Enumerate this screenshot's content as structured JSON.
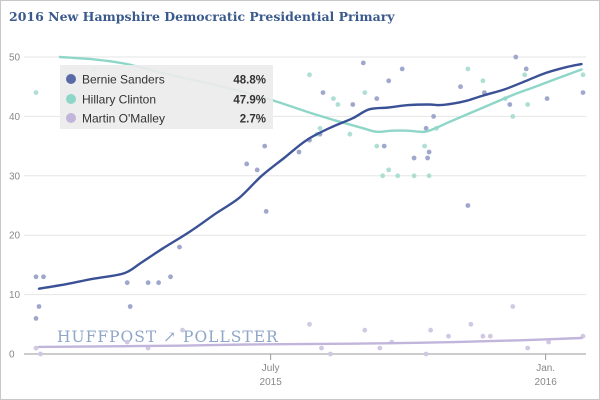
{
  "chart_data": {
    "type": "line",
    "title": "2016 New Hampshire Democratic Presidential Primary",
    "xlabel": "",
    "ylabel": "",
    "x_range": [
      "2015-01-25",
      "2016-01-28"
    ],
    "ylim": [
      0,
      50
    ],
    "y_ticks": [
      0,
      10,
      20,
      30,
      40,
      50
    ],
    "x_ticks": [
      {
        "date": "2015-07-01",
        "label_line1": "July",
        "label_line2": "2015"
      },
      {
        "date": "2016-01-01",
        "label_line1": "Jan.",
        "label_line2": "2016"
      }
    ],
    "grid": true,
    "legend_position": "top-left",
    "watermark": "HUFFPOST ↗ POLLSTER",
    "series": [
      {
        "name": "Bernie Sanders",
        "color": "#3b5196",
        "point_color": "#9aa3c9",
        "latest_value": "48.8%",
        "trend": [
          {
            "date": "2015-01-27",
            "value": 11.0
          },
          {
            "date": "2015-02-15",
            "value": 11.8
          },
          {
            "date": "2015-03-05",
            "value": 12.7
          },
          {
            "date": "2015-03-25",
            "value": 13.6
          },
          {
            "date": "2015-04-05",
            "value": 15.3
          },
          {
            "date": "2015-04-20",
            "value": 17.8
          },
          {
            "date": "2015-05-08",
            "value": 20.6
          },
          {
            "date": "2015-05-25",
            "value": 23.6
          },
          {
            "date": "2015-06-10",
            "value": 26.3
          },
          {
            "date": "2015-06-25",
            "value": 30.0
          },
          {
            "date": "2015-07-10",
            "value": 33.0
          },
          {
            "date": "2015-07-25",
            "value": 36.0
          },
          {
            "date": "2015-08-10",
            "value": 38.1
          },
          {
            "date": "2015-08-25",
            "value": 39.7
          },
          {
            "date": "2015-09-05",
            "value": 41.2
          },
          {
            "date": "2015-09-18",
            "value": 41.5
          },
          {
            "date": "2015-10-01",
            "value": 41.9
          },
          {
            "date": "2015-10-15",
            "value": 42.0
          },
          {
            "date": "2015-10-22",
            "value": 41.9
          },
          {
            "date": "2015-11-01",
            "value": 42.2
          },
          {
            "date": "2015-11-10",
            "value": 42.7
          },
          {
            "date": "2015-11-20",
            "value": 43.5
          },
          {
            "date": "2015-12-05",
            "value": 44.6
          },
          {
            "date": "2015-12-20",
            "value": 46.1
          },
          {
            "date": "2016-01-01",
            "value": 47.3
          },
          {
            "date": "2016-01-15",
            "value": 48.3
          },
          {
            "date": "2016-01-25",
            "value": 48.8
          }
        ],
        "points": [
          {
            "date": "2015-01-25",
            "value": 13
          },
          {
            "date": "2015-01-27",
            "value": 8
          },
          {
            "date": "2015-01-25",
            "value": 6
          },
          {
            "date": "2015-01-30",
            "value": 13
          },
          {
            "date": "2015-03-27",
            "value": 12
          },
          {
            "date": "2015-03-29",
            "value": 8
          },
          {
            "date": "2015-04-10",
            "value": 12
          },
          {
            "date": "2015-04-17",
            "value": 12
          },
          {
            "date": "2015-04-25",
            "value": 13
          },
          {
            "date": "2015-05-01",
            "value": 18
          },
          {
            "date": "2015-06-15",
            "value": 32
          },
          {
            "date": "2015-06-22",
            "value": 31
          },
          {
            "date": "2015-06-27",
            "value": 35
          },
          {
            "date": "2015-06-28",
            "value": 24
          },
          {
            "date": "2015-07-20",
            "value": 34
          },
          {
            "date": "2015-07-27",
            "value": 36
          },
          {
            "date": "2015-08-03",
            "value": 37
          },
          {
            "date": "2015-08-05",
            "value": 44
          },
          {
            "date": "2015-08-25",
            "value": 42
          },
          {
            "date": "2015-09-01",
            "value": 49
          },
          {
            "date": "2015-09-10",
            "value": 43
          },
          {
            "date": "2015-09-15",
            "value": 35
          },
          {
            "date": "2015-09-18",
            "value": 46
          },
          {
            "date": "2015-09-27",
            "value": 48
          },
          {
            "date": "2015-10-05",
            "value": 33
          },
          {
            "date": "2015-10-13",
            "value": 38
          },
          {
            "date": "2015-10-14",
            "value": 33
          },
          {
            "date": "2015-10-15",
            "value": 34
          },
          {
            "date": "2015-10-18",
            "value": 40
          },
          {
            "date": "2015-11-05",
            "value": 45
          },
          {
            "date": "2015-11-10",
            "value": 25
          },
          {
            "date": "2015-11-21",
            "value": 44
          },
          {
            "date": "2015-12-08",
            "value": 42
          },
          {
            "date": "2015-12-12",
            "value": 50
          },
          {
            "date": "2015-12-19",
            "value": 48
          },
          {
            "date": "2016-01-02",
            "value": 43
          },
          {
            "date": "2016-01-26",
            "value": 44
          }
        ]
      },
      {
        "name": "Hillary Clinton",
        "color": "#8ed6c8",
        "point_color": "#a9ddd3",
        "latest_value": "47.9%",
        "trend": [
          {
            "date": "2015-02-10",
            "value": 50.0
          },
          {
            "date": "2015-03-05",
            "value": 49.6
          },
          {
            "date": "2015-03-25",
            "value": 48.9
          },
          {
            "date": "2015-04-15",
            "value": 47.6
          },
          {
            "date": "2015-05-05",
            "value": 46.4
          },
          {
            "date": "2015-05-25",
            "value": 45.3
          },
          {
            "date": "2015-06-15",
            "value": 44.0
          },
          {
            "date": "2015-07-05",
            "value": 42.5
          },
          {
            "date": "2015-07-25",
            "value": 40.8
          },
          {
            "date": "2015-08-15",
            "value": 39.2
          },
          {
            "date": "2015-09-01",
            "value": 38.0
          },
          {
            "date": "2015-09-10",
            "value": 37.4
          },
          {
            "date": "2015-09-20",
            "value": 37.6
          },
          {
            "date": "2015-10-01",
            "value": 37.6
          },
          {
            "date": "2015-10-12",
            "value": 37.4
          },
          {
            "date": "2015-10-20",
            "value": 38.1
          },
          {
            "date": "2015-10-28",
            "value": 39.0
          },
          {
            "date": "2015-11-10",
            "value": 40.4
          },
          {
            "date": "2015-11-25",
            "value": 42.0
          },
          {
            "date": "2015-12-10",
            "value": 43.6
          },
          {
            "date": "2015-12-25",
            "value": 45.0
          },
          {
            "date": "2016-01-10",
            "value": 46.5
          },
          {
            "date": "2016-01-25",
            "value": 47.9
          }
        ],
        "points": [
          {
            "date": "2015-01-25",
            "value": 44
          },
          {
            "date": "2015-02-15",
            "value": 47
          },
          {
            "date": "2015-03-05",
            "value": 48
          },
          {
            "date": "2015-07-27",
            "value": 47
          },
          {
            "date": "2015-08-01",
            "value": 37
          },
          {
            "date": "2015-08-03",
            "value": 38
          },
          {
            "date": "2015-08-12",
            "value": 43
          },
          {
            "date": "2015-08-15",
            "value": 42
          },
          {
            "date": "2015-08-23",
            "value": 37
          },
          {
            "date": "2015-09-02",
            "value": 44
          },
          {
            "date": "2015-09-10",
            "value": 35
          },
          {
            "date": "2015-09-14",
            "value": 30
          },
          {
            "date": "2015-09-18",
            "value": 31
          },
          {
            "date": "2015-09-24",
            "value": 30
          },
          {
            "date": "2015-10-05",
            "value": 30
          },
          {
            "date": "2015-10-12",
            "value": 35
          },
          {
            "date": "2015-10-15",
            "value": 30
          },
          {
            "date": "2015-10-20",
            "value": 38
          },
          {
            "date": "2015-11-10",
            "value": 48
          },
          {
            "date": "2015-11-20",
            "value": 46
          },
          {
            "date": "2015-12-05",
            "value": 43
          },
          {
            "date": "2015-12-10",
            "value": 40
          },
          {
            "date": "2015-12-18",
            "value": 47
          },
          {
            "date": "2015-12-20",
            "value": 42
          },
          {
            "date": "2016-01-26",
            "value": 47
          }
        ]
      },
      {
        "name": "Martin O'Malley",
        "color": "#c2b5db",
        "point_color": "#cfc6e3",
        "latest_value": "2.7%",
        "trend": [
          {
            "date": "2015-01-27",
            "value": 1.2
          },
          {
            "date": "2015-03-15",
            "value": 1.3
          },
          {
            "date": "2015-05-01",
            "value": 1.4
          },
          {
            "date": "2015-06-15",
            "value": 1.6
          },
          {
            "date": "2015-08-01",
            "value": 1.7
          },
          {
            "date": "2015-09-15",
            "value": 1.8
          },
          {
            "date": "2015-11-01",
            "value": 2.0
          },
          {
            "date": "2015-12-15",
            "value": 2.3
          },
          {
            "date": "2016-01-25",
            "value": 2.7
          }
        ],
        "points": [
          {
            "date": "2015-01-25",
            "value": 1
          },
          {
            "date": "2015-01-28",
            "value": 0
          },
          {
            "date": "2015-03-27",
            "value": 2
          },
          {
            "date": "2015-04-10",
            "value": 1
          },
          {
            "date": "2015-05-03",
            "value": 4
          },
          {
            "date": "2015-07-27",
            "value": 5
          },
          {
            "date": "2015-08-04",
            "value": 1
          },
          {
            "date": "2015-08-10",
            "value": 0
          },
          {
            "date": "2015-09-02",
            "value": 4
          },
          {
            "date": "2015-09-12",
            "value": 1
          },
          {
            "date": "2015-09-20",
            "value": 2
          },
          {
            "date": "2015-10-13",
            "value": 0
          },
          {
            "date": "2015-10-16",
            "value": 4
          },
          {
            "date": "2015-10-28",
            "value": 3
          },
          {
            "date": "2015-11-12",
            "value": 5
          },
          {
            "date": "2015-11-20",
            "value": 3
          },
          {
            "date": "2015-11-25",
            "value": 3
          },
          {
            "date": "2015-12-10",
            "value": 8
          },
          {
            "date": "2015-12-20",
            "value": 1
          },
          {
            "date": "2016-01-03",
            "value": 2
          },
          {
            "date": "2016-01-26",
            "value": 3
          }
        ]
      }
    ]
  }
}
